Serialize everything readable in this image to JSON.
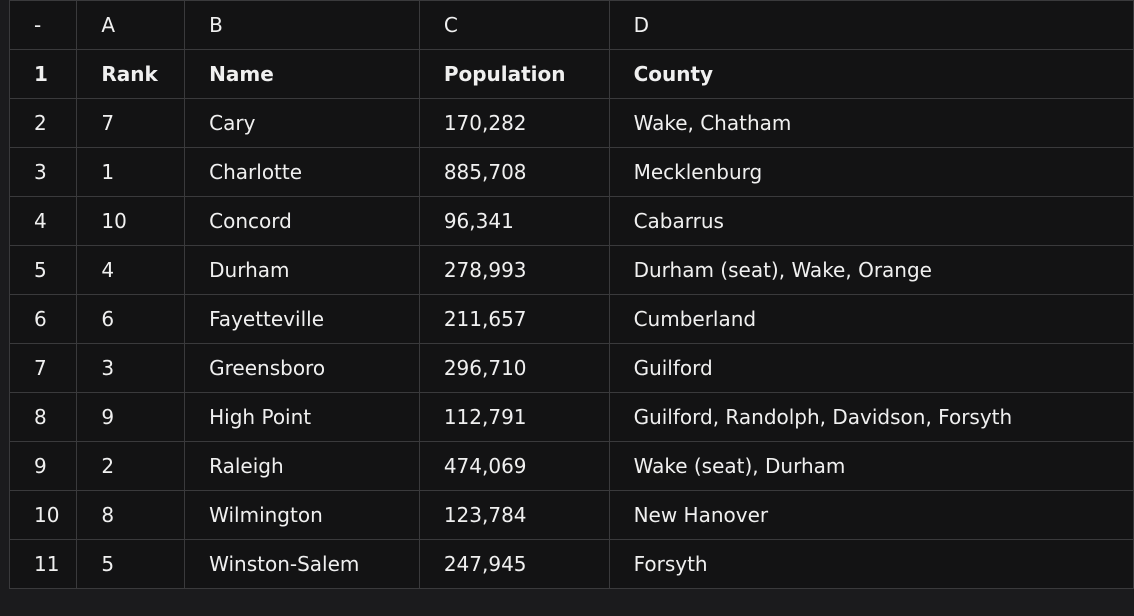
{
  "column_letters": [
    "-",
    "A",
    "B",
    "C",
    "D"
  ],
  "rows": [
    {
      "num": "1",
      "cells": [
        "Rank",
        "Name",
        "Population",
        "County"
      ]
    },
    {
      "num": "2",
      "cells": [
        "7",
        "Cary",
        "170,282",
        "Wake, Chatham"
      ]
    },
    {
      "num": "3",
      "cells": [
        "1",
        "Charlotte",
        "885,708",
        "Mecklenburg"
      ]
    },
    {
      "num": "4",
      "cells": [
        "10",
        "Concord",
        "96,341",
        "Cabarrus"
      ]
    },
    {
      "num": "5",
      "cells": [
        "4",
        "Durham",
        "278,993",
        "Durham (seat), Wake, Orange"
      ]
    },
    {
      "num": "6",
      "cells": [
        "6",
        "Fayetteville",
        "211,657",
        "Cumberland"
      ]
    },
    {
      "num": "7",
      "cells": [
        "3",
        "Greensboro",
        "296,710",
        "Guilford"
      ]
    },
    {
      "num": "8",
      "cells": [
        "9",
        "High Point",
        "112,791",
        "Guilford, Randolph, Davidson, Forsyth"
      ]
    },
    {
      "num": "9",
      "cells": [
        "2",
        "Raleigh",
        "474,069",
        "Wake (seat), Durham"
      ]
    },
    {
      "num": "10",
      "cells": [
        "8",
        "Wilmington",
        "123,784",
        "New Hanover"
      ]
    },
    {
      "num": "11",
      "cells": [
        "5",
        "Winston-Salem",
        "247,945",
        "Forsyth"
      ]
    }
  ]
}
